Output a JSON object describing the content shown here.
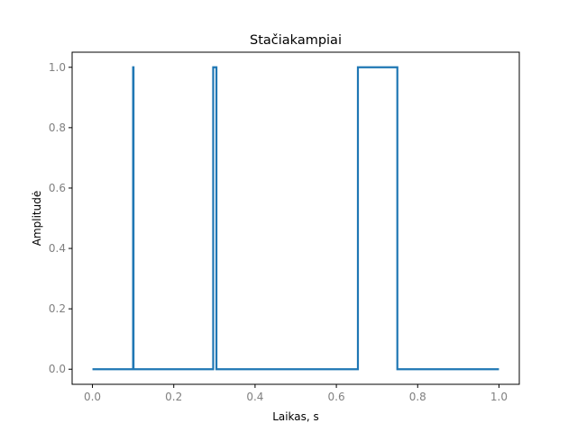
{
  "chart_data": {
    "type": "line",
    "title": "Stačiakampiai",
    "xlabel": "Laikas, s",
    "ylabel": "Amplitudė",
    "xlim": [
      -0.05,
      1.05
    ],
    "ylim": [
      -0.05,
      1.05
    ],
    "x_ticks": [
      0.0,
      0.2,
      0.4,
      0.6,
      0.8,
      1.0
    ],
    "x_tick_labels": [
      "0.0",
      "0.2",
      "0.4",
      "0.6",
      "0.8",
      "1.0"
    ],
    "y_ticks": [
      0.0,
      0.2,
      0.4,
      0.6,
      0.8,
      1.0
    ],
    "y_tick_labels": [
      "0.0",
      "0.2",
      "0.4",
      "0.6",
      "0.8",
      "1.0"
    ],
    "grid": false,
    "legend": "none",
    "series": [
      {
        "color": "#1f77b4",
        "x": [
          0.0,
          0.1,
          0.1,
          0.101,
          0.101,
          0.297,
          0.297,
          0.305,
          0.305,
          0.653,
          0.653,
          0.75,
          0.75,
          1.0
        ],
        "y": [
          0,
          0,
          1,
          1,
          0,
          0,
          1,
          1,
          0,
          0,
          1,
          1,
          0,
          0
        ]
      }
    ],
    "axes_color": "#000000"
  }
}
